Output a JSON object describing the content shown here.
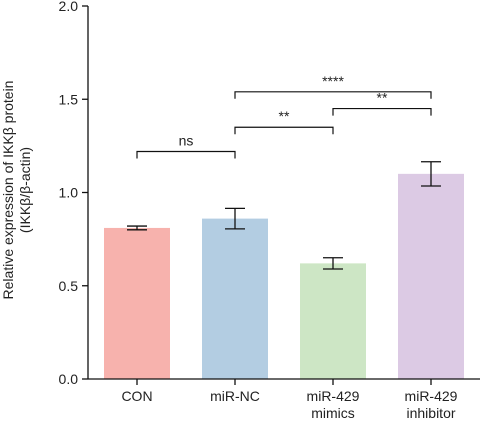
{
  "chart_data": {
    "type": "bar",
    "categories": [
      [
        "CON"
      ],
      [
        "miR-NC"
      ],
      [
        "miR-429",
        "mimics"
      ],
      [
        "miR-429",
        "inhibitor"
      ]
    ],
    "values": [
      0.81,
      0.86,
      0.62,
      1.1
    ],
    "errors": [
      0.01,
      0.055,
      0.03,
      0.065
    ],
    "colors": [
      "#f7b2ad",
      "#b3cde2",
      "#cde6c5",
      "#dccae4"
    ],
    "ylabel_lines": [
      "Relative expression of IKKβ protein",
      "(IKKβ/β-actin)"
    ],
    "xlabel": "",
    "ylim": [
      0,
      2.0
    ],
    "yticks": [
      "0.0",
      "0.5",
      "1.0",
      "1.5",
      "2.0"
    ],
    "significance": [
      {
        "from": 0,
        "to": 1,
        "label": "ns",
        "level": 1.22
      },
      {
        "from": 1,
        "to": 2,
        "label": "**",
        "level": 1.35
      },
      {
        "from": 2,
        "to": 3,
        "label": "**",
        "level": 1.45
      },
      {
        "from": 1,
        "to": 3,
        "label": "****",
        "level": 1.54
      }
    ],
    "grid": false,
    "legend": "none"
  }
}
